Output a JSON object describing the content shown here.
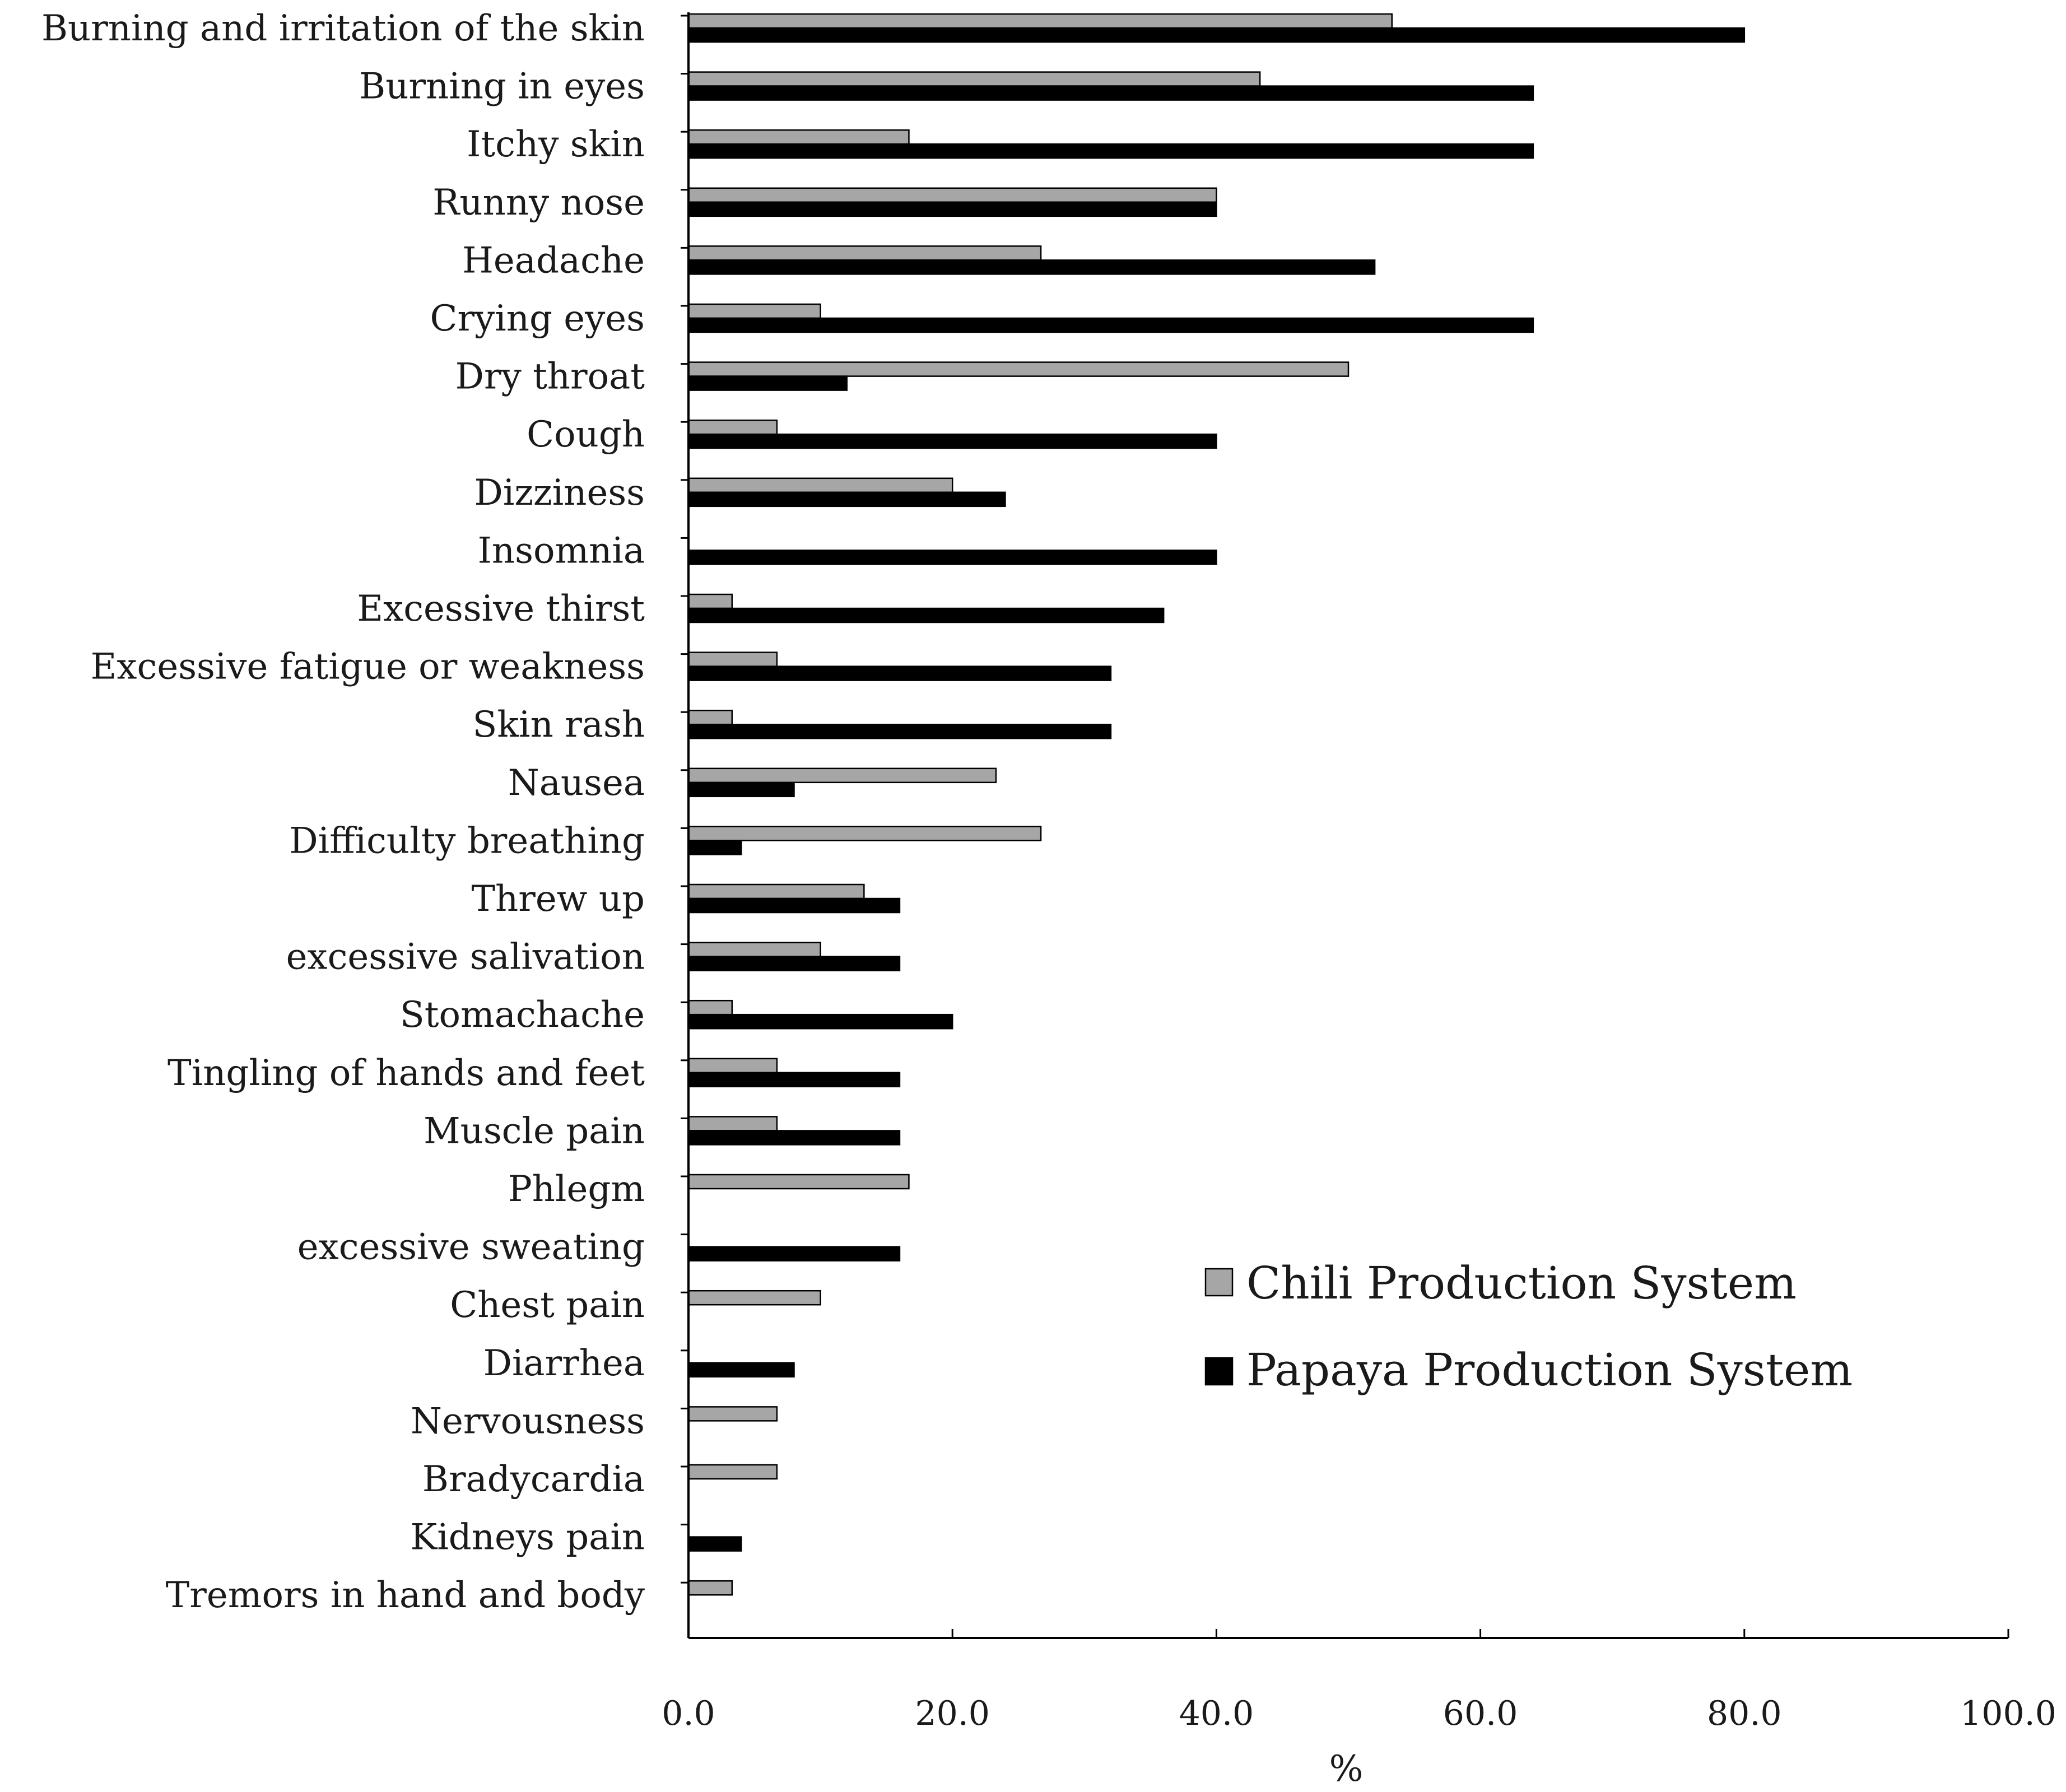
{
  "chart_data": {
    "type": "bar",
    "orientation": "horizontal",
    "categories": [
      "Burning and irritation of the skin",
      "Burning in eyes",
      "Itchy skin",
      "Runny nose",
      "Headache",
      "Crying eyes",
      "Dry throat",
      "Cough",
      "Dizziness",
      "Insomnia",
      "Excessive thirst",
      "Excessive fatigue or weakness",
      "Skin rash",
      "Nausea",
      "Difficulty breathing",
      "Threw up",
      "excessive salivation",
      "Stomachache",
      "Tingling of hands and feet",
      "Muscle pain",
      "Phlegm",
      "excessive sweating",
      "Chest pain",
      "Diarrhea",
      "Nervousness",
      "Bradycardia",
      "Kidneys pain",
      "Tremors in hand and body"
    ],
    "series": [
      {
        "name": "Chili Production System",
        "color": "#a6a6a6",
        "values": [
          53.3,
          43.3,
          16.7,
          40.0,
          26.7,
          10.0,
          50.0,
          6.7,
          20.0,
          0,
          3.3,
          6.7,
          3.3,
          23.3,
          26.7,
          13.3,
          10.0,
          3.3,
          6.7,
          6.7,
          16.7,
          0,
          10.0,
          0,
          6.7,
          6.7,
          0,
          3.3
        ]
      },
      {
        "name": "Papaya Production System",
        "color": "#000000",
        "values": [
          80.0,
          64.0,
          64.0,
          40.0,
          52.0,
          64.0,
          12.0,
          40.0,
          24.0,
          40.0,
          36.0,
          32.0,
          32.0,
          8.0,
          4.0,
          16.0,
          16.0,
          20.0,
          16.0,
          16.0,
          0,
          16.0,
          0,
          8.0,
          0,
          0,
          4.0,
          0
        ]
      }
    ],
    "xlim": [
      0,
      100
    ],
    "xticks": [
      "0.0",
      "20.0",
      "40.0",
      "60.0",
      "80.0",
      "100.0"
    ],
    "xlabel": "%",
    "ylabel": "",
    "title": "",
    "grid": false,
    "legend_position": "right"
  }
}
